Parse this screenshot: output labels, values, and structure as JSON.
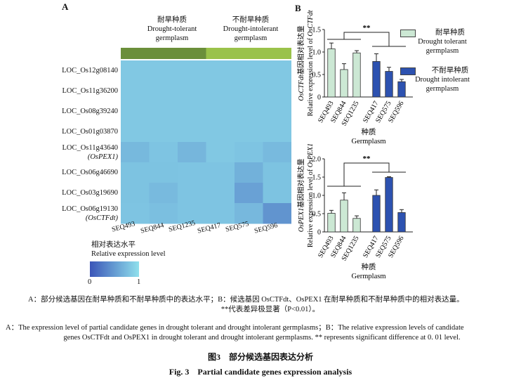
{
  "panel_a": {
    "letter": "A",
    "group_tolerant": {
      "zh": "耐旱种质",
      "en1": "Drought-tolerant",
      "en2": "germplasm",
      "color": "#6b8f3a"
    },
    "group_intolerant": {
      "zh": "不耐旱种质",
      "en1": "Drought-intolerant",
      "en2": "germplasm",
      "color": "#9ac24a"
    },
    "genes": [
      {
        "line1": "LOC_Os12g08140",
        "line2": ""
      },
      {
        "line1": "LOC_Os11g36200",
        "line2": ""
      },
      {
        "line1": "LOC_Os08g39240",
        "line2": ""
      },
      {
        "line1": "LOC_Os01g03870",
        "line2": ""
      },
      {
        "line1": "LOC_Os11g43640",
        "line2": "(OsPEX1)"
      },
      {
        "line1": "LOC_Os06g46690",
        "line2": ""
      },
      {
        "line1": "LOC_Os03g19690",
        "line2": ""
      },
      {
        "line1": "LOC_Os06g19130",
        "line2": "(OsCTFdt)"
      }
    ],
    "samples": [
      "SEQ493",
      "SEQ844",
      "SEQ1235",
      "SEQ417",
      "SEQ575",
      "SEQ596"
    ],
    "heatmap_values": [
      [
        0.83,
        0.83,
        0.83,
        0.83,
        0.83,
        0.83
      ],
      [
        0.83,
        0.83,
        0.83,
        0.83,
        0.83,
        0.83
      ],
      [
        0.83,
        0.83,
        0.83,
        0.83,
        0.83,
        0.83
      ],
      [
        0.83,
        0.83,
        0.83,
        0.83,
        0.83,
        0.83
      ],
      [
        0.72,
        0.8,
        0.7,
        0.83,
        0.8,
        0.73
      ],
      [
        0.79,
        0.79,
        0.8,
        0.8,
        0.66,
        0.79
      ],
      [
        0.79,
        0.73,
        0.8,
        0.8,
        0.55,
        0.79
      ],
      [
        0.8,
        0.76,
        0.8,
        0.8,
        0.71,
        0.45
      ]
    ],
    "legend": {
      "title_zh": "相对表达水平",
      "title_en": "Relative expression level",
      "min_label": "0",
      "max_label": "1",
      "color_low": "#3b55b8",
      "color_high": "#8fe0ec"
    }
  },
  "panel_b": {
    "letter": "B",
    "ylabel_zh": "基因相对表达量",
    "ylabel_en": "Relative expression level of",
    "xlabel_zh": "种质",
    "xlabel_en": "Germplasm",
    "significance": "**",
    "legend_tolerant": {
      "zh": "耐旱种质",
      "en1": "Drought tolerant",
      "en2": "germplasm",
      "color": "#cce8d4"
    },
    "legend_intolerant": {
      "zh": "不耐旱种质",
      "en1": "Drought intolerant",
      "en2": "germplasm",
      "color": "#2d52b0"
    }
  },
  "chart_data": [
    {
      "type": "bar",
      "gene": "OsCTFdt",
      "categories": [
        "SEQ493",
        "SEQ844",
        "SEQ1235",
        "SEQ417",
        "SEQ575",
        "SEQ596"
      ],
      "values": [
        1.07,
        0.61,
        0.98,
        0.79,
        0.57,
        0.34
      ],
      "errors": [
        0.13,
        0.13,
        0.05,
        0.17,
        0.09,
        0.05
      ],
      "groups": [
        "tolerant",
        "tolerant",
        "tolerant",
        "intolerant",
        "intolerant",
        "intolerant"
      ],
      "yticks": [
        "0",
        "0.5",
        "1.0",
        "1.5"
      ],
      "ylim": [
        0,
        1.5
      ]
    },
    {
      "type": "bar",
      "gene": "OsPEX1",
      "categories": [
        "SEQ493",
        "SEQ844",
        "SEQ1235",
        "SEQ417",
        "SEQ575",
        "SEQ596"
      ],
      "values": [
        0.51,
        0.87,
        0.37,
        1.0,
        1.49,
        0.53
      ],
      "errors": [
        0.08,
        0.2,
        0.07,
        0.15,
        0.02,
        0.08
      ],
      "groups": [
        "tolerant",
        "tolerant",
        "tolerant",
        "intolerant",
        "intolerant",
        "intolerant"
      ],
      "yticks": [
        "0",
        "0.5",
        "1.0",
        "1.5",
        "2.0"
      ],
      "ylim": [
        0,
        2.0
      ]
    }
  ],
  "caption": {
    "zh_line1": "A：部分候选基因在耐旱种质和不耐旱种质中的表达水平；B：候选基因 OsCTFdt、OsPEX1 在耐旱种质和不耐旱种质中的相对表达量。",
    "zh_line2": "**代表差异极显著（P<0.01）。",
    "en_line1": "A：The expression level of partial candidate genes in drought tolerant and drought intolerant germplasms；B：The relative expression levels of candidate",
    "en_line2": "genes OsCTFdt and OsPEX1 in drought tolerant and drought intolerant germplasms. ** represents significant difference at 0. 01 level.",
    "fig_zh": "图3　部分候选基因表达分析",
    "fig_en": "Fig. 3　Partial candidate genes expression analysis"
  }
}
